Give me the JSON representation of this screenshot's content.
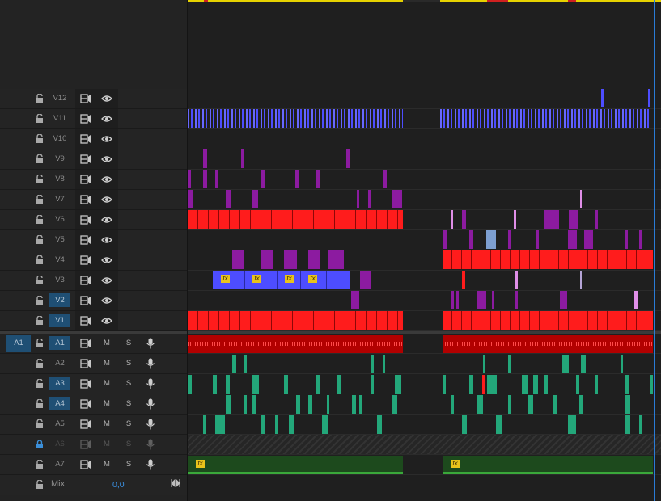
{
  "video_tracks": [
    {
      "name": "V12",
      "targeted": false
    },
    {
      "name": "V11",
      "targeted": false
    },
    {
      "name": "V10",
      "targeted": false
    },
    {
      "name": "V9",
      "targeted": false
    },
    {
      "name": "V8",
      "targeted": false
    },
    {
      "name": "V7",
      "targeted": false
    },
    {
      "name": "V6",
      "targeted": false
    },
    {
      "name": "V5",
      "targeted": false
    },
    {
      "name": "V4",
      "targeted": false
    },
    {
      "name": "V3",
      "targeted": false
    },
    {
      "name": "V2",
      "targeted": true
    },
    {
      "name": "V1",
      "targeted": true
    }
  ],
  "audio_tracks": [
    {
      "name": "A1",
      "targeted": true,
      "source_patch": "A1",
      "mute": "M",
      "solo": "S"
    },
    {
      "name": "A2",
      "targeted": false,
      "mute": "M",
      "solo": "S"
    },
    {
      "name": "A3",
      "targeted": true,
      "mute": "M",
      "solo": "S"
    },
    {
      "name": "A4",
      "targeted": true,
      "mute": "M",
      "solo": "S"
    },
    {
      "name": "A5",
      "targeted": false,
      "mute": "M",
      "solo": "S"
    },
    {
      "name": "A6",
      "targeted": false,
      "locked": true,
      "mute": "M",
      "solo": "S"
    },
    {
      "name": "A7",
      "targeted": false,
      "mute": "M",
      "solo": "S"
    }
  ],
  "mix": {
    "label": "Mix",
    "value": "0,0"
  },
  "fx_badge": "fx",
  "colors": {
    "video_red": "#ff1c1c",
    "video_magenta": "#8c1ba0",
    "video_blue": "#4d4dff",
    "audio_red": "#b20000",
    "audio_teal": "#23a77a",
    "audio_green": "#1d4a1d",
    "work_area": "#e6d200",
    "playhead": "#2a7bd6",
    "target_blue": "#1f4f74"
  }
}
